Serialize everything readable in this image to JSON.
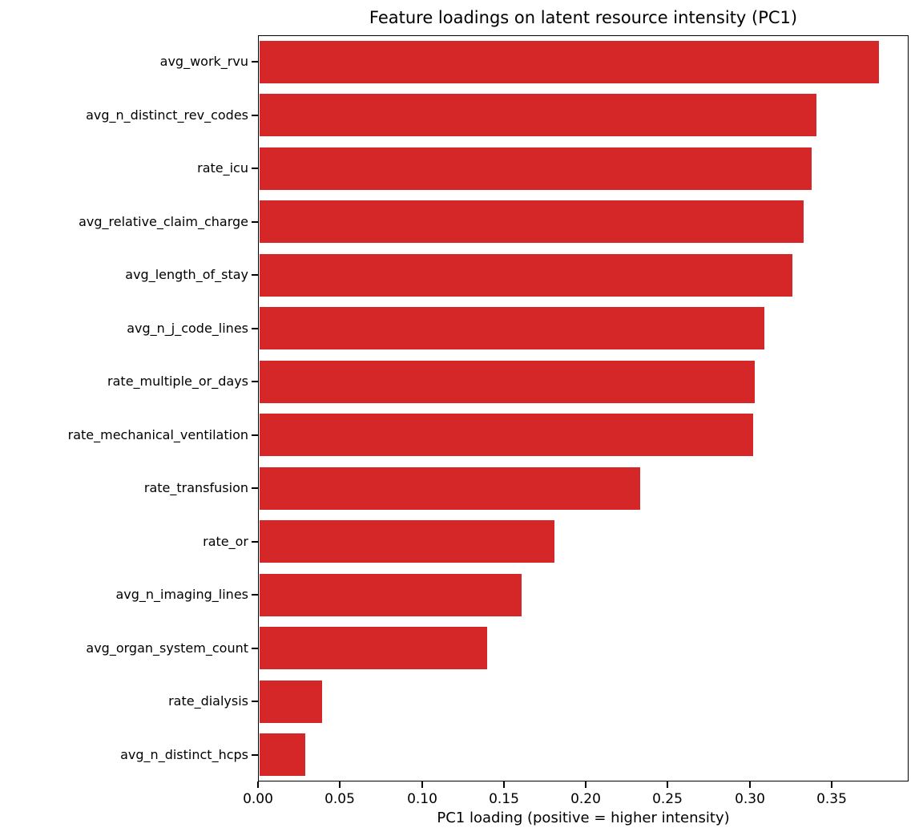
{
  "chart_data": {
    "type": "bar",
    "orientation": "horizontal",
    "title": "Feature loadings on latent resource intensity (PC1)",
    "xlabel": "PC1 loading (positive = higher intensity)",
    "ylabel": "",
    "categories": [
      "avg_work_rvu",
      "avg_n_distinct_rev_codes",
      "rate_icu",
      "avg_relative_claim_charge",
      "avg_length_of_stay",
      "avg_n_j_code_lines",
      "rate_multiple_or_days",
      "rate_mechanical_ventilation",
      "rate_transfusion",
      "rate_or",
      "avg_n_imaging_lines",
      "avg_organ_system_count",
      "rate_dialysis",
      "avg_n_distinct_hcps"
    ],
    "values": [
      0.378,
      0.34,
      0.337,
      0.332,
      0.325,
      0.308,
      0.302,
      0.301,
      0.232,
      0.18,
      0.16,
      0.139,
      0.038,
      0.028
    ],
    "xlim": [
      0,
      0.397
    ],
    "xticks": [
      0.0,
      0.05,
      0.1,
      0.15,
      0.2,
      0.25,
      0.3,
      0.35
    ],
    "xtick_labels": [
      "0.00",
      "0.05",
      "0.10",
      "0.15",
      "0.20",
      "0.25",
      "0.30",
      "0.35"
    ],
    "grid": false,
    "legend": null,
    "bar_color": "#d62728",
    "text_color": "#000000",
    "spine_color": "#000000"
  }
}
